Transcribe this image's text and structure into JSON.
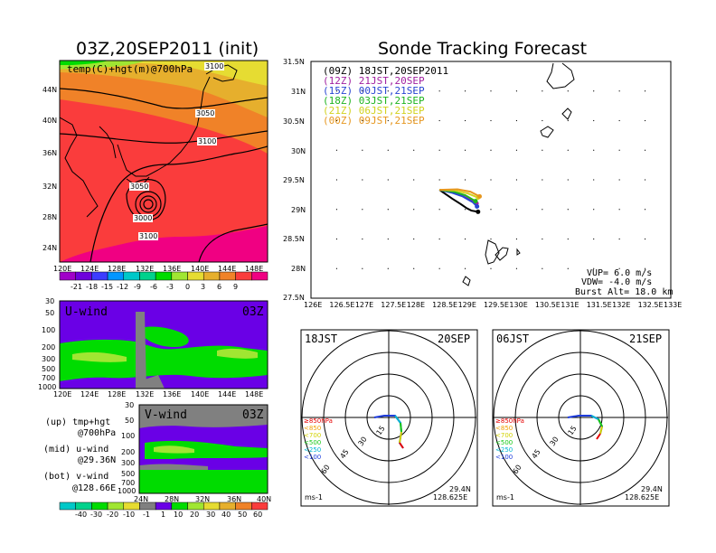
{
  "left": {
    "title": "03Z,20SEP2011 (init)",
    "top_panel": {
      "label": "temp(C)+hgt(m)@700hPa",
      "contours": [
        "3050",
        "3100",
        "3050",
        "3000",
        "3100",
        "3100"
      ],
      "yticks": [
        "44N",
        "40N",
        "36N",
        "32N",
        "28N",
        "24N"
      ],
      "xticks": [
        "120E",
        "124E",
        "128E",
        "132E",
        "136E",
        "140E",
        "144E",
        "148E"
      ],
      "colorbar_ticks": [
        "-21",
        "-18",
        "-15",
        "-12",
        "-9",
        "-6",
        "-3",
        "0",
        "3",
        "6",
        "9"
      ],
      "colorbar_colors": [
        "#a000c8",
        "#6e00dc",
        "#3c3cff",
        "#0096ff",
        "#00c8c8",
        "#00d28c",
        "#00dc00",
        "#a0e632",
        "#e6dc32",
        "#e6af2d",
        "#f08228",
        "#fa3c3c",
        "#f00082"
      ]
    },
    "u_panel": {
      "label": "U-wind",
      "time": "03Z",
      "yticks": [
        "30",
        "50",
        "100",
        "200",
        "300",
        "500",
        "700",
        "1000"
      ],
      "xticks": [
        "120E",
        "124E",
        "128E",
        "132E",
        "136E",
        "140E",
        "144E",
        "148E"
      ]
    },
    "v_panel": {
      "label": "V-wind",
      "time": "03Z",
      "yticks": [
        "30",
        "50",
        "100",
        "200",
        "300",
        "500",
        "700",
        "1000"
      ],
      "xticks": [
        "24N",
        "28N",
        "32N",
        "36N",
        "40N"
      ]
    },
    "notes": [
      {
        "a": "(up) tmp+hgt",
        "b": "@700hPa"
      },
      {
        "a": "(mid) u-wind",
        "b": "@29.36N"
      },
      {
        "a": "(bot) v-wind",
        "b": "@128.66E"
      }
    ],
    "wind_colorbar_ticks": [
      "-40",
      "-30",
      "-20",
      "-10",
      "-1",
      "1",
      "10",
      "20",
      "30",
      "40",
      "50",
      "60"
    ],
    "wind_colorbar_colors": [
      "#00c8c8",
      "#00d28c",
      "#00dc00",
      "#a0e632",
      "#e6dc32",
      "#808080",
      "#6a00e6",
      "#00dc00",
      "#a0e632",
      "#e6dc32",
      "#e6af2d",
      "#f08228",
      "#fa3c3c"
    ]
  },
  "right": {
    "title": "Sonde Tracking Forecast",
    "legend": [
      {
        "code": "(09Z)",
        "text": "18JST,20SEP2011",
        "color": "#000000"
      },
      {
        "code": "(12Z)",
        "text": "21JST,20SEP",
        "color": "#a01fa0"
      },
      {
        "code": "(15Z)",
        "text": "00JST,21SEP",
        "color": "#2845d2"
      },
      {
        "code": "(18Z)",
        "text": "03JST,21SEP",
        "color": "#1eb41e"
      },
      {
        "code": "(21Z)",
        "text": "06JST,21SEP",
        "color": "#d2d21e"
      },
      {
        "code": "(00Z)",
        "text": "09JST,21SEP",
        "color": "#e6961e"
      }
    ],
    "yticks": [
      "31.5N",
      "31N",
      "30.5N",
      "30N",
      "29.5N",
      "29N",
      "28.5N",
      "28N",
      "27.5N"
    ],
    "xticks": [
      "126E",
      "126.5E",
      "127E",
      "127.5E",
      "128E",
      "128.5E",
      "129E",
      "129.5E",
      "130E",
      "130.5E",
      "131E",
      "131.5E",
      "132E",
      "132.5E",
      "133E"
    ],
    "params": {
      "vup": "VUP= 6.0 m/s",
      "vdw": "VDW= -4.0 m/s",
      "burst": "Burst Alt= 18.0 km"
    }
  },
  "hodographs": [
    {
      "left_label": "18JST",
      "right_label": "20SEP",
      "lat": "29.4N",
      "lon": "128.625E",
      "unit": "ms-1",
      "rings": [
        "15",
        "30",
        "45",
        "60"
      ]
    },
    {
      "left_label": "06JST",
      "right_label": "21SEP",
      "lat": "29.4N",
      "lon": "128.625E",
      "unit": "ms-1",
      "rings": [
        "15",
        "30",
        "45",
        "60"
      ]
    }
  ],
  "hodo_levels": [
    {
      "label": "≥850hPa",
      "color": "#e60000"
    },
    {
      "label": "<850",
      "color": "#f0a000"
    },
    {
      "label": "<700",
      "color": "#d2d200"
    },
    {
      "label": "<500",
      "color": "#14c814"
    },
    {
      "label": "<250",
      "color": "#00b4d2"
    },
    {
      "label": "<100",
      "color": "#1e3cdc"
    }
  ],
  "chart_data": [
    {
      "type": "heatmap",
      "title": "03Z,20SEP2011 (init)",
      "label": "temp(C)+hgt(m)@700hPa",
      "x_ticks": [
        "120E",
        "124E",
        "128E",
        "132E",
        "136E",
        "140E",
        "144E",
        "148E"
      ],
      "y_ticks": [
        "24N",
        "28N",
        "32N",
        "36N",
        "40N",
        "44N"
      ],
      "contour_labels": [
        3000,
        3050,
        3100
      ]
    },
    {
      "type": "heatmap",
      "label": "U-wind",
      "x_ticks": [
        "120E",
        "124E",
        "128E",
        "132E",
        "136E",
        "140E",
        "144E",
        "148E"
      ],
      "y_ticks": [
        30,
        50,
        100,
        200,
        300,
        500,
        700,
        1000
      ]
    },
    {
      "type": "heatmap",
      "label": "V-wind",
      "x_ticks": [
        "24N",
        "28N",
        "32N",
        "36N",
        "40N"
      ],
      "y_ticks": [
        30,
        50,
        100,
        200,
        300,
        500,
        700,
        1000
      ]
    },
    {
      "type": "line",
      "title": "Sonde Tracking Forecast",
      "xlim": [
        126,
        133
      ],
      "ylim": [
        27.5,
        31.5
      ],
      "series": [
        {
          "name": "(09Z) 18JST,20SEP2011",
          "points": [
            [
              128.5,
              29.33
            ],
            [
              128.75,
              29.18
            ],
            [
              128.93,
              29.08
            ],
            [
              129.03,
              29.02
            ],
            [
              129.12,
              28.98
            ],
            [
              129.25,
              28.96
            ]
          ]
        },
        {
          "name": "(12Z) 21JST,20SEP",
          "points": [
            [
              128.5,
              29.33
            ],
            [
              128.7,
              29.3
            ],
            [
              128.9,
              29.25
            ],
            [
              129.1,
              29.16
            ],
            [
              129.22,
              29.1
            ]
          ]
        },
        {
          "name": "(15Z) 00JST,21SEP",
          "points": [
            [
              128.5,
              29.33
            ],
            [
              128.75,
              29.28
            ],
            [
              128.95,
              29.22
            ],
            [
              129.15,
              29.12
            ],
            [
              129.23,
              29.05
            ]
          ]
        },
        {
          "name": "(18Z) 03JST,21SEP",
          "points": [
            [
              128.5,
              29.33
            ],
            [
              128.77,
              29.3
            ],
            [
              129.0,
              29.24
            ],
            [
              129.2,
              29.14
            ]
          ]
        },
        {
          "name": "(21Z) 06JST,21SEP",
          "points": [
            [
              128.5,
              29.33
            ],
            [
              128.8,
              29.32
            ],
            [
              129.05,
              29.27
            ],
            [
              129.25,
              29.2
            ]
          ]
        },
        {
          "name": "(00Z) 09JST,21SEP",
          "points": [
            [
              128.5,
              29.33
            ],
            [
              128.85,
              29.34
            ],
            [
              129.1,
              29.3
            ],
            [
              129.28,
              29.22
            ]
          ]
        }
      ]
    }
  ]
}
